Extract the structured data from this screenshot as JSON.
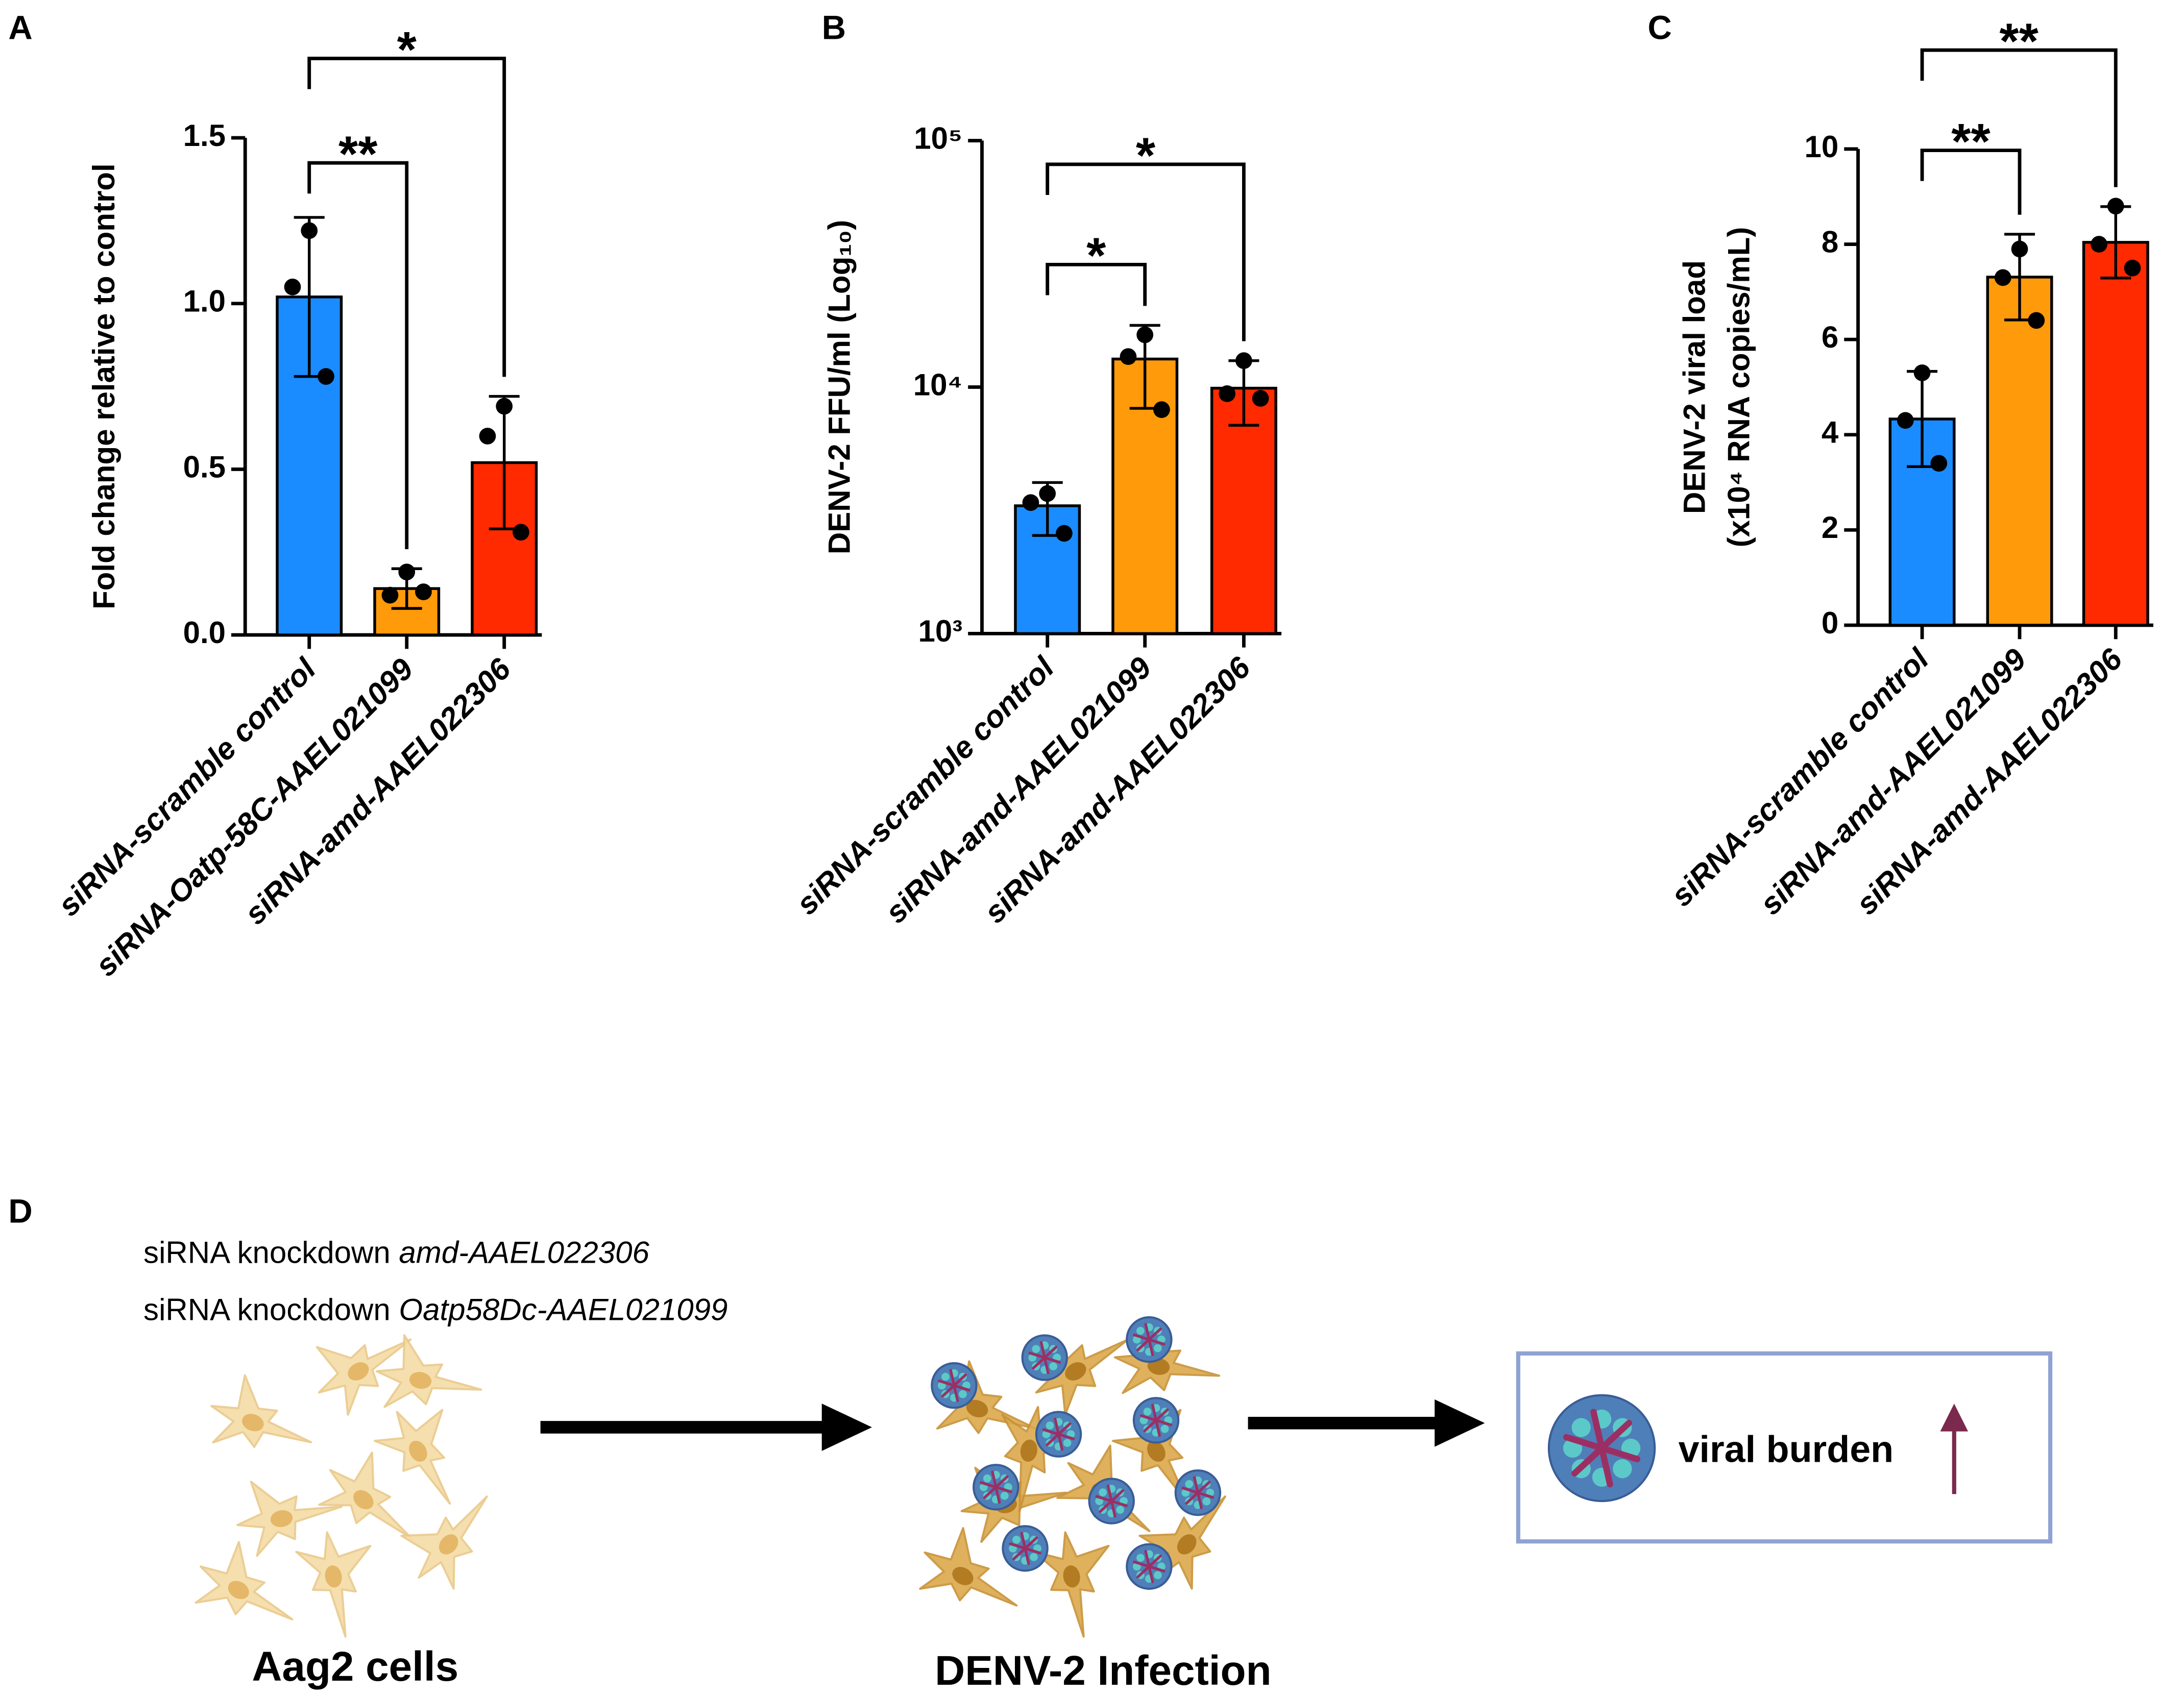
{
  "chart_data": [
    {
      "type": "bar",
      "label": "A",
      "ylabel": "Fold change relative to control",
      "categories": [
        "siRNA-scramble control",
        "siRNA-Oatp-58C-AAEL021099",
        "siRNA-amd-AAEL022306"
      ],
      "values": [
        1.02,
        0.14,
        0.52
      ],
      "errors": [
        0.24,
        0.06,
        0.2
      ],
      "points": [
        [
          1.22,
          1.05,
          0.78
        ],
        [
          0.19,
          0.12,
          0.13
        ],
        [
          0.69,
          0.6,
          0.31
        ]
      ],
      "colors": [
        "#1a8cff",
        "#ff9a0a",
        "#ff2a00"
      ],
      "ylim": [
        0,
        1.5
      ],
      "yticks": [
        {
          "value": 0,
          "label": "0.0"
        },
        0.5,
        {
          "value": 1,
          "label": "1.0"
        },
        1.5
      ],
      "annotations": [
        "**",
        "*"
      ]
    },
    {
      "type": "bar",
      "label": "B",
      "ylabel": "DENV-2 FFU/ml (Log₁₀)",
      "log_scale": true,
      "categories": [
        "siRNA-scramble control",
        "siRNA-amd-AAEL021099",
        "siRNA-amd-AAEL022306"
      ],
      "values": [
        3300,
        13000,
        9900
      ],
      "errors": [
        800,
        4800,
        2900
      ],
      "points": [
        [
          3700,
          3400,
          2550
        ],
        [
          16300,
          13300,
          8100
        ],
        [
          12800,
          9400,
          9000
        ]
      ],
      "colors": [
        "#1a8cff",
        "#ff9a0a",
        "#ff2a00"
      ],
      "ylim": [
        1000,
        100000
      ],
      "yticks": [
        {
          "value": 1000,
          "label": "10³"
        },
        {
          "value": 10000,
          "label": "10⁴"
        },
        {
          "value": 100000,
          "label": "10⁵"
        }
      ],
      "annotations": [
        "*",
        "*"
      ]
    },
    {
      "type": "bar",
      "label": "C",
      "ylabel": [
        "DENV-2 viral load",
        "(x10⁴ RNA copies/mL)"
      ],
      "categories": [
        "siRNA-scramble control",
        "siRNA-amd-AAEL021099",
        "siRNA-amd-AAEL022306"
      ],
      "values": [
        4.33,
        7.31,
        8.04
      ],
      "errors": [
        1.0,
        0.9,
        0.75
      ],
      "points": [
        [
          5.3,
          4.3,
          3.4
        ],
        [
          7.9,
          7.3,
          6.4
        ],
        [
          8.8,
          8.0,
          7.5
        ]
      ],
      "colors": [
        "#1a8cff",
        "#ff9a0a",
        "#ff2a00"
      ],
      "ylim": [
        0,
        10
      ],
      "yticks": [
        0,
        2,
        4,
        6,
        8,
        10
      ],
      "annotations": [
        "**",
        "**"
      ]
    }
  ],
  "diagram": {
    "label": "D",
    "lines": [
      {
        "prefix": "siRNA knockdown ",
        "gene": "amd-AAEL022306"
      },
      {
        "prefix": "siRNA knockdown ",
        "gene": "Oatp58Dc-AAEL021099"
      }
    ],
    "steps": [
      "Aag2 cells",
      "DENV-2 Infection"
    ],
    "result": "viral burden"
  }
}
